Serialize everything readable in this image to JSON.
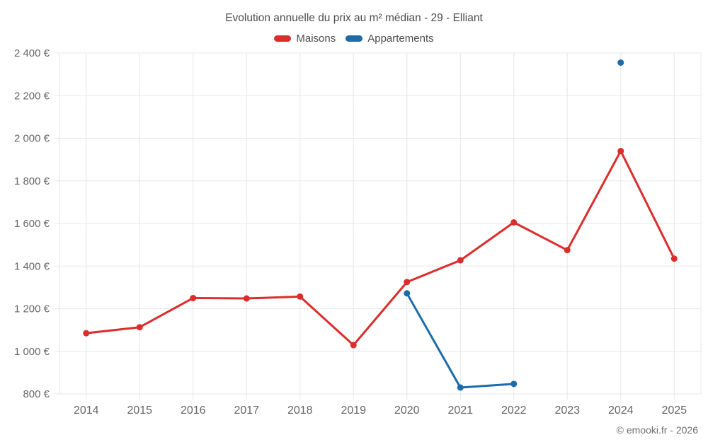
{
  "page": {
    "title": "Evolution annuelle du prix au m² médian - 29 - Elliant",
    "footer_credit": "© emooki.fr - 2026"
  },
  "chart_data": {
    "type": "line",
    "title": "Evolution annuelle du prix au m² médian - 29 - Elliant",
    "categories": [
      "2014",
      "2015",
      "2016",
      "2017",
      "2018",
      "2019",
      "2020",
      "2021",
      "2022",
      "2023",
      "2024",
      "2025"
    ],
    "series": [
      {
        "name": "Maisons",
        "color": "#dd2c2c",
        "values": [
          1085,
          1113,
          1250,
          1248,
          1257,
          1029,
          1325,
          1427,
          1605,
          1475,
          1940,
          1435
        ]
      },
      {
        "name": "Appartements",
        "color": "#1b6ca8",
        "values": [
          null,
          null,
          null,
          null,
          null,
          null,
          1272,
          830,
          847,
          null,
          2355,
          null
        ]
      }
    ],
    "xlabel": "",
    "ylabel": "",
    "ylim": [
      800,
      2400
    ],
    "ytick_step": 200,
    "y_suffix": " €",
    "grid": true,
    "legend_position": "top",
    "grid_color": "#e7e7e7",
    "axis_label_color": "#666666",
    "axis_font_size": 15
  }
}
